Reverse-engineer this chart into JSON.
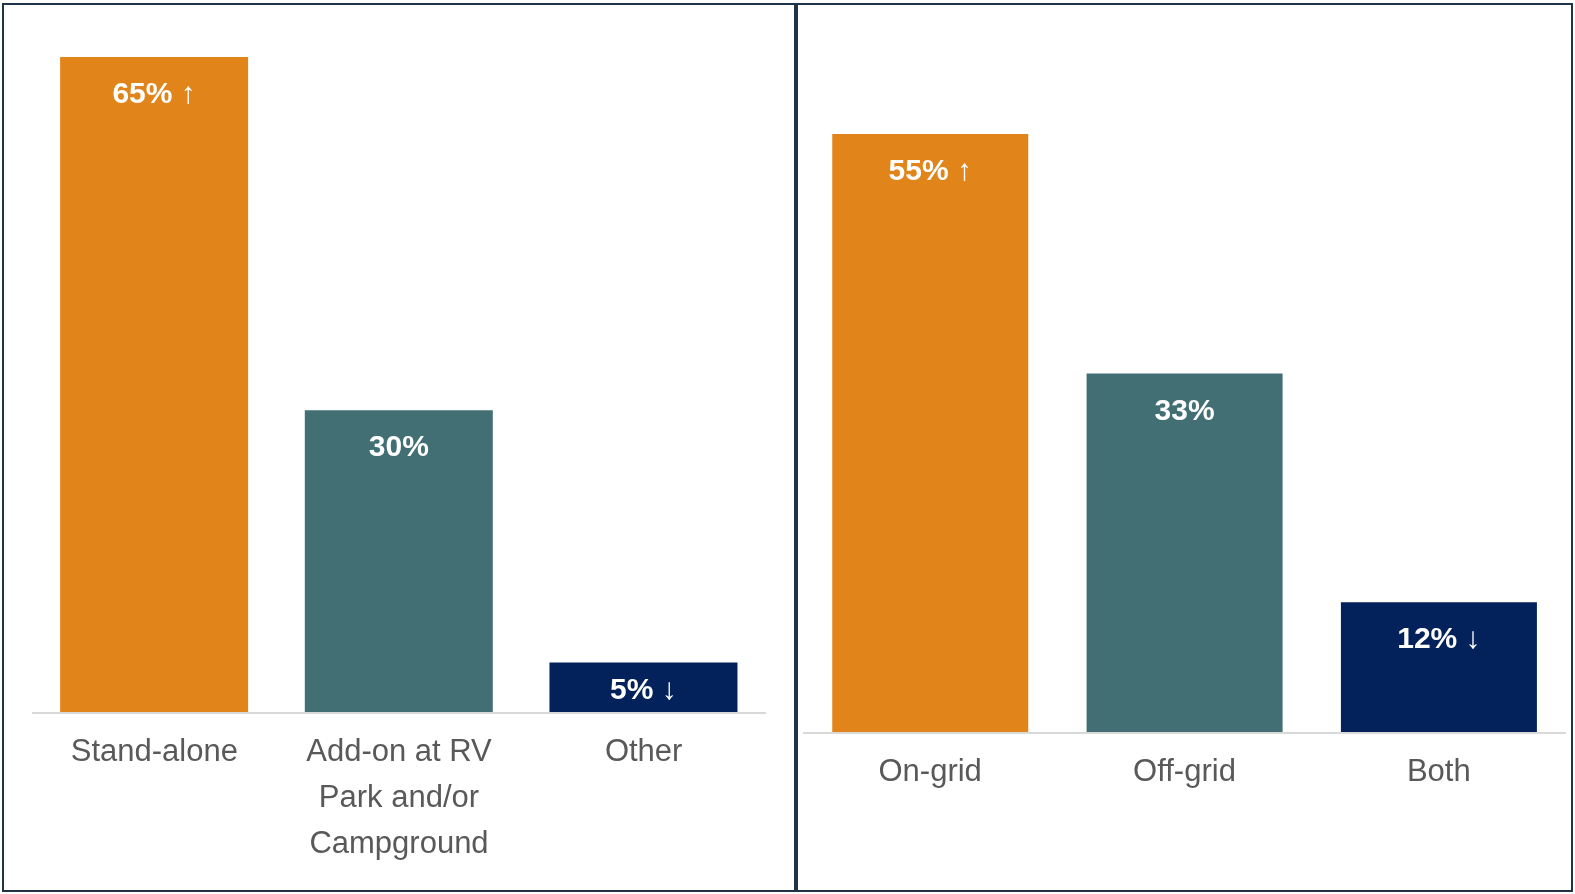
{
  "chart_data": [
    {
      "type": "bar",
      "categories": [
        "Stand-alone",
        "Add-on at RV Park and/or Campground",
        "Other"
      ],
      "values": [
        65,
        30,
        5
      ],
      "colors": [
        "#e1841a",
        "#416f74",
        "#03215a"
      ],
      "value_labels": [
        "65% ↑",
        "30%",
        "5% ↓"
      ]
    },
    {
      "type": "bar",
      "categories": [
        "On-grid",
        "Off-grid",
        "Both"
      ],
      "values": [
        55,
        33,
        12
      ],
      "colors": [
        "#e1841a",
        "#416f74",
        "#03215a"
      ],
      "value_labels": [
        "55% ↑",
        "33%",
        "12% ↓"
      ]
    }
  ]
}
